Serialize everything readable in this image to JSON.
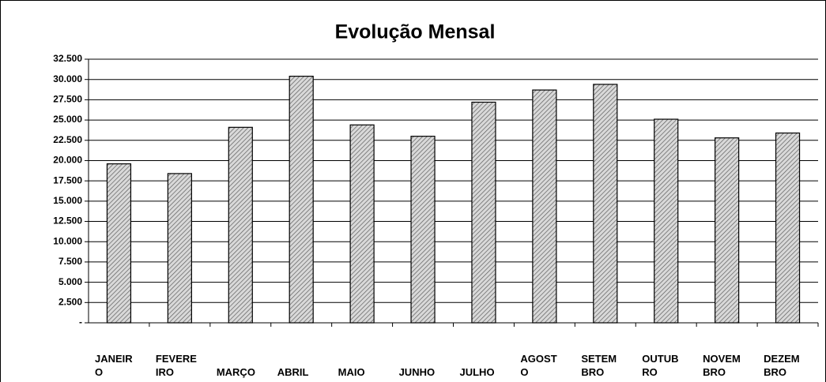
{
  "chart_data": {
    "type": "bar",
    "title": "Evolução Mensal",
    "categories": [
      "JANEIRO",
      "FEVEREIRO",
      "MARÇO",
      "ABRIL",
      "MAIO",
      "JUNHO",
      "JULHO",
      "AGOSTO",
      "SETEMBRO",
      "OUTUBRO",
      "NOVEMBRO",
      "DEZEMBRO"
    ],
    "values": [
      19600,
      18400,
      24100,
      30400,
      24400,
      23000,
      27200,
      28700,
      29400,
      25100,
      22800,
      23400
    ],
    "color": "#bfbfbf",
    "ylim": [
      0,
      32500
    ],
    "yticks": [
      {
        "value": 0,
        "label": "-"
      },
      {
        "value": 2500,
        "label": "2.500"
      },
      {
        "value": 5000,
        "label": "5.000"
      },
      {
        "value": 7500,
        "label": "7.500"
      },
      {
        "value": 10000,
        "label": "10.000"
      },
      {
        "value": 12500,
        "label": "12.500"
      },
      {
        "value": 15000,
        "label": "15.000"
      },
      {
        "value": 17500,
        "label": "17.500"
      },
      {
        "value": 20000,
        "label": "20.000"
      },
      {
        "value": 22500,
        "label": "22.500"
      },
      {
        "value": 25000,
        "label": "25.000"
      },
      {
        "value": 27500,
        "label": "27.500"
      },
      {
        "value": 30000,
        "label": "30.000"
      },
      {
        "value": 32500,
        "label": "32.500"
      }
    ],
    "grid": true
  }
}
